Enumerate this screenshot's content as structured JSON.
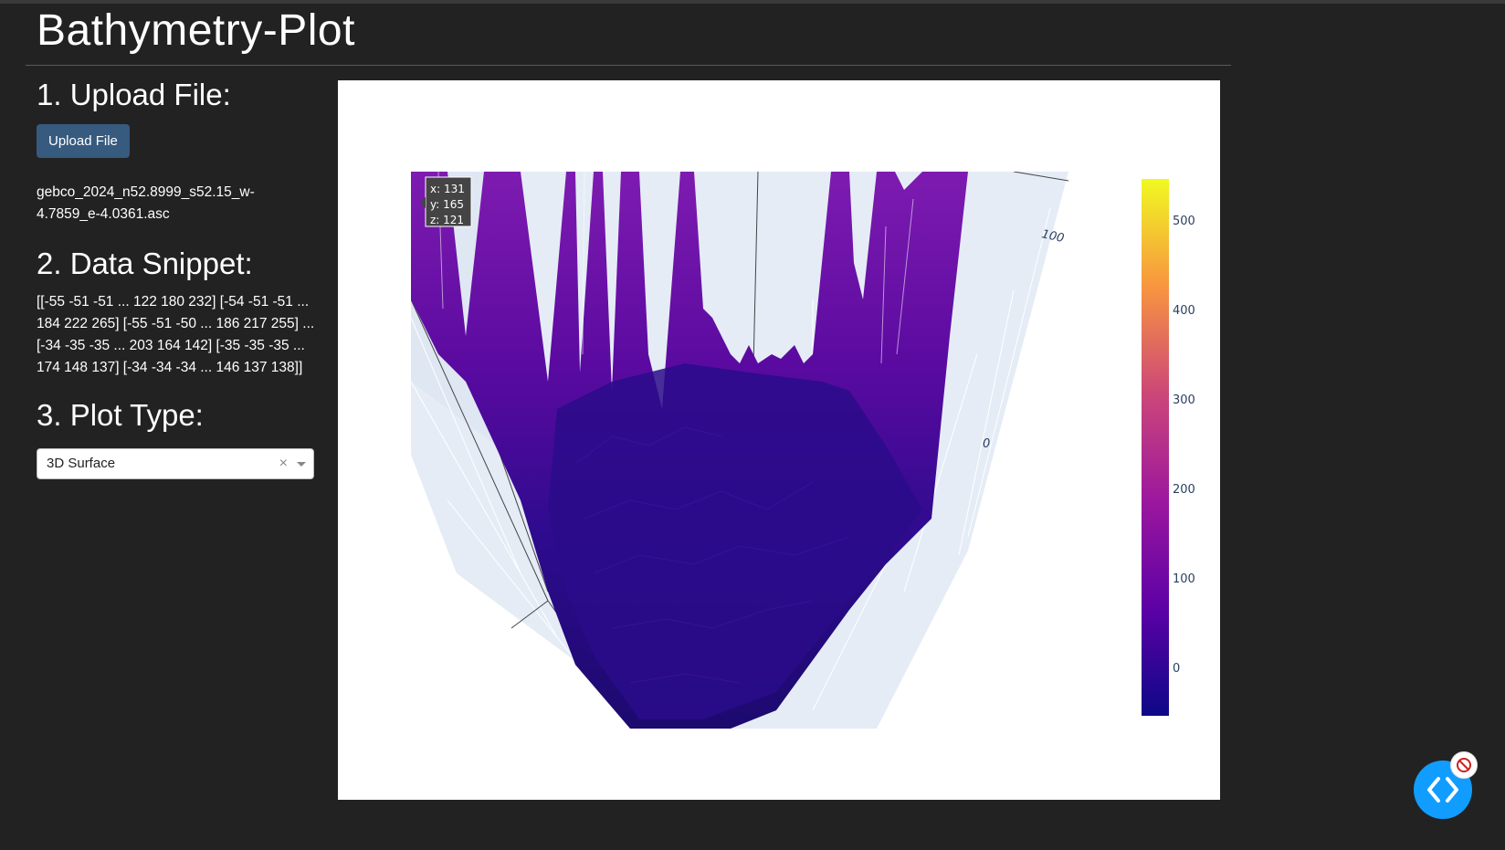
{
  "app": {
    "title": "Bathymetry-Plot"
  },
  "sidebar": {
    "upload_heading": "1. Upload File:",
    "upload_button": "Upload File",
    "filename": "gebco_2024_n52.8999_s52.15_w-4.7859_e-4.0361.asc",
    "snippet_heading": "2. Data Snippet:",
    "snippet_text": "[[-55 -51 -51 ... 122 180 232] [-54 -51 -51 ... 184 222 265] [-55 -51 -50 ... 186 217 255] ... [-34 -35 -35 ... 203 164 142] [-35 -35 -35 ... 174 148 137] [-34 -34 -34 ... 146 137 138]]",
    "plot_type_heading": "3. Plot Type:",
    "plot_type_value": "3D Surface",
    "clear_symbol": "×"
  },
  "plot": {
    "axis_tick_100": "100",
    "axis_tick_0": "0",
    "hover": {
      "x": "x: 131",
      "y": "y: 165",
      "z": "z: 121"
    },
    "colorbar_ticks": [
      "500",
      "400",
      "300",
      "200",
      "100",
      "0"
    ],
    "colorscale": [
      "#0d0887",
      "#7e03a8",
      "#cc4778",
      "#f89540",
      "#f0f921"
    ]
  },
  "icons": {
    "fab": "code-brackets-icon",
    "badge": "no-entry-icon"
  }
}
